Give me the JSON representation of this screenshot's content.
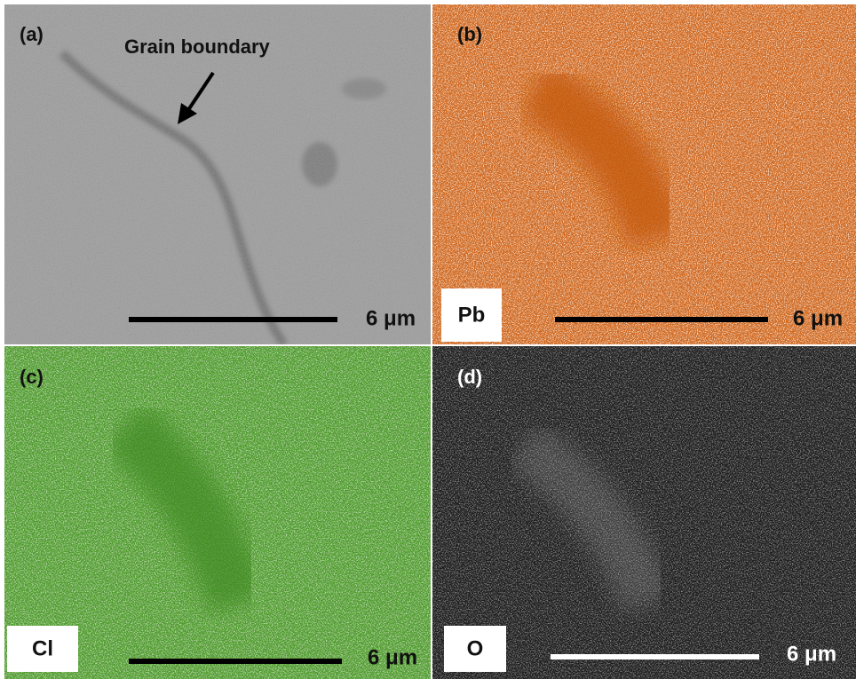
{
  "panels": [
    {
      "label": "(a)",
      "annotation": "Grain boundary",
      "scale_bar": "6 μm"
    },
    {
      "label": "(b)",
      "element": "Pb",
      "scale_bar": "6 μm"
    },
    {
      "label": "(c)",
      "element": "Cl",
      "scale_bar": "6 μm"
    },
    {
      "label": "(d)",
      "element": "O",
      "scale_bar": "6 μm"
    }
  ]
}
